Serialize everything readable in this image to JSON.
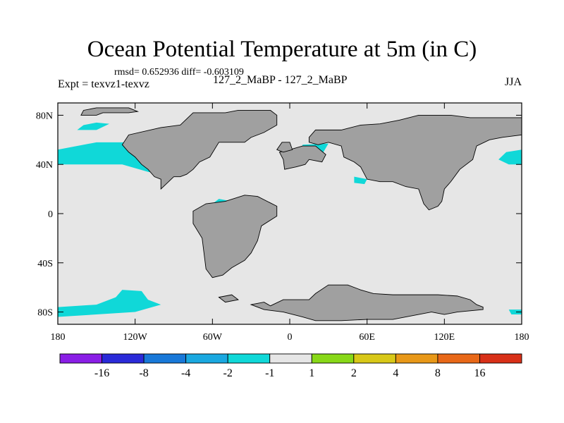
{
  "title": "Ocean Potential Temperature at 5m (in C)",
  "stats": "rmsd= 0.652936 diff= -0.603109",
  "expt": "Expt = texvz1-texvz",
  "subtitle": "127_2_MaBP - 127_2_MaBP",
  "season": "JJA",
  "chart_data": {
    "type": "heatmap",
    "projection": "cylindrical-equidistant",
    "xlim": [
      -180,
      180
    ],
    "ylim": [
      -90,
      90
    ],
    "x_ticks": [
      {
        "value": -180,
        "label": "180"
      },
      {
        "value": -120,
        "label": "120W"
      },
      {
        "value": -60,
        "label": "60W"
      },
      {
        "value": 0,
        "label": "0"
      },
      {
        "value": 60,
        "label": "60E"
      },
      {
        "value": 120,
        "label": "120E"
      },
      {
        "value": 180,
        "label": "180"
      }
    ],
    "y_ticks": [
      {
        "value": 80,
        "label": "80N"
      },
      {
        "value": 40,
        "label": "40N"
      },
      {
        "value": 0,
        "label": "0"
      },
      {
        "value": -40,
        "label": "40S"
      },
      {
        "value": -80,
        "label": "80S"
      }
    ],
    "colorbar": {
      "levels": [
        "-16",
        "-8",
        "-4",
        "-2",
        "-1",
        "1",
        "2",
        "4",
        "8",
        "16"
      ],
      "colors": [
        "#8a1ee6",
        "#2a2ad8",
        "#1878d8",
        "#1aa8e0",
        "#10d8d8",
        "#e6e6e6",
        "#88d818",
        "#d8c818",
        "#e89818",
        "#e86818",
        "#d83018"
      ]
    },
    "land_color": "#a0a0a0",
    "background_color": "#e6e6e6",
    "land_regions": [
      {
        "name": "north-america",
        "polygon": [
          [
            -75,
            82
          ],
          [
            -50,
            82
          ],
          [
            -40,
            84
          ],
          [
            -15,
            84
          ],
          [
            -10,
            80
          ],
          [
            -10,
            72
          ],
          [
            -20,
            66
          ],
          [
            -30,
            62
          ],
          [
            -35,
            58
          ],
          [
            -55,
            58
          ],
          [
            -62,
            46
          ],
          [
            -70,
            42
          ],
          [
            -75,
            36
          ],
          [
            -80,
            32
          ],
          [
            -85,
            30
          ],
          [
            -90,
            30
          ],
          [
            -95,
            25
          ],
          [
            -100,
            20
          ],
          [
            -100,
            28
          ],
          [
            -105,
            30
          ],
          [
            -110,
            36
          ],
          [
            -115,
            40
          ],
          [
            -120,
            46
          ],
          [
            -125,
            50
          ],
          [
            -130,
            56
          ],
          [
            -125,
            64
          ],
          [
            -100,
            70
          ],
          [
            -85,
            72
          ]
        ]
      },
      {
        "name": "arctic-island",
        "polygon": [
          [
            -162,
            80
          ],
          [
            -150,
            80
          ],
          [
            -145,
            82
          ],
          [
            -125,
            82
          ],
          [
            -118,
            83
          ],
          [
            -125,
            86
          ],
          [
            -150,
            86
          ],
          [
            -160,
            84
          ]
        ]
      },
      {
        "name": "south-america",
        "polygon": [
          [
            -50,
            10
          ],
          [
            -35,
            15
          ],
          [
            -25,
            14
          ],
          [
            -10,
            6
          ],
          [
            -10,
            -2
          ],
          [
            -22,
            -10
          ],
          [
            -25,
            -22
          ],
          [
            -30,
            -32
          ],
          [
            -35,
            -38
          ],
          [
            -45,
            -44
          ],
          [
            -52,
            -50
          ],
          [
            -60,
            -52
          ],
          [
            -65,
            -45
          ],
          [
            -68,
            -20
          ],
          [
            -75,
            -8
          ],
          [
            -75,
            2
          ],
          [
            -65,
            8
          ]
        ]
      },
      {
        "name": "eurasia",
        "polygon": [
          [
            15,
            62
          ],
          [
            20,
            68
          ],
          [
            40,
            68
          ],
          [
            55,
            72
          ],
          [
            70,
            73
          ],
          [
            85,
            76
          ],
          [
            100,
            80
          ],
          [
            125,
            80
          ],
          [
            140,
            78
          ],
          [
            160,
            78
          ],
          [
            180,
            78
          ],
          [
            180,
            64
          ],
          [
            165,
            62
          ],
          [
            155,
            60
          ],
          [
            145,
            55
          ],
          [
            142,
            44
          ],
          [
            132,
            36
          ],
          [
            125,
            26
          ],
          [
            120,
            20
          ],
          [
            118,
            10
          ],
          [
            115,
            6
          ],
          [
            108,
            3
          ],
          [
            104,
            8
          ],
          [
            100,
            20
          ],
          [
            90,
            22
          ],
          [
            80,
            26
          ],
          [
            70,
            26
          ],
          [
            60,
            28
          ],
          [
            55,
            38
          ],
          [
            50,
            42
          ],
          [
            42,
            46
          ],
          [
            40,
            55
          ],
          [
            30,
            58
          ],
          [
            22,
            56
          ],
          [
            15,
            58
          ]
        ]
      },
      {
        "name": "europe",
        "polygon": [
          [
            -8,
            50
          ],
          [
            -5,
            44
          ],
          [
            -4,
            36
          ],
          [
            5,
            38
          ],
          [
            12,
            40
          ],
          [
            15,
            44
          ],
          [
            25,
            42
          ],
          [
            28,
            48
          ],
          [
            20,
            55
          ],
          [
            10,
            55
          ],
          [
            0,
            52
          ]
        ]
      },
      {
        "name": "britain",
        "polygon": [
          [
            -10,
            52
          ],
          [
            -5,
            50
          ],
          [
            2,
            52
          ],
          [
            0,
            58
          ],
          [
            -6,
            58
          ]
        ]
      },
      {
        "name": "antarctica",
        "polygon": [
          [
            -30,
            -74
          ],
          [
            -20,
            -72
          ],
          [
            -15,
            -75
          ],
          [
            -5,
            -70
          ],
          [
            15,
            -70
          ],
          [
            20,
            -65
          ],
          [
            30,
            -58
          ],
          [
            45,
            -58
          ],
          [
            55,
            -62
          ],
          [
            65,
            -65
          ],
          [
            80,
            -66
          ],
          [
            100,
            -66
          ],
          [
            115,
            -66
          ],
          [
            130,
            -67
          ],
          [
            140,
            -70
          ],
          [
            145,
            -74
          ],
          [
            150,
            -76
          ],
          [
            150,
            -78
          ],
          [
            130,
            -80
          ],
          [
            120,
            -82
          ],
          [
            110,
            -80
          ],
          [
            100,
            -82
          ],
          [
            90,
            -84
          ],
          [
            80,
            -86
          ],
          [
            60,
            -86
          ],
          [
            40,
            -87
          ],
          [
            20,
            -87
          ],
          [
            10,
            -84
          ],
          [
            -5,
            -80
          ],
          [
            -20,
            -78
          ]
        ]
      },
      {
        "name": "west-antarctic-islands",
        "polygon": [
          [
            -55,
            -68
          ],
          [
            -45,
            -66
          ],
          [
            -40,
            -70
          ],
          [
            -50,
            -72
          ]
        ]
      }
    ],
    "negative_anomaly_regions": [
      {
        "level_bin": "-2 to -1",
        "polygon": [
          [
            -180,
            52
          ],
          [
            -150,
            58
          ],
          [
            -130,
            58
          ],
          [
            -100,
            58
          ],
          [
            -95,
            48
          ],
          [
            -90,
            42
          ],
          [
            -85,
            38
          ],
          [
            -90,
            30
          ],
          [
            -110,
            34
          ],
          [
            -130,
            40
          ],
          [
            -160,
            40
          ],
          [
            -180,
            40
          ]
        ]
      },
      {
        "level_bin": "-2 to -1",
        "polygon": [
          [
            -160,
            72
          ],
          [
            -150,
            74
          ],
          [
            -140,
            73
          ],
          [
            -150,
            68
          ],
          [
            -165,
            68
          ]
        ]
      },
      {
        "level_bin": "-2 to -1",
        "polygon": [
          [
            -130,
            -62
          ],
          [
            -115,
            -63
          ],
          [
            -110,
            -70
          ],
          [
            -100,
            -74
          ],
          [
            -120,
            -80
          ],
          [
            -150,
            -82
          ],
          [
            -180,
            -84
          ],
          [
            -180,
            -76
          ],
          [
            -150,
            -74
          ],
          [
            -135,
            -68
          ]
        ]
      },
      {
        "level_bin": "-2 to -1",
        "polygon": [
          [
            -55,
            12
          ],
          [
            -45,
            10
          ],
          [
            -50,
            2
          ],
          [
            -60,
            2
          ],
          [
            -65,
            4
          ]
        ]
      },
      {
        "level_bin": "-2 to -1",
        "polygon": [
          [
            10,
            56
          ],
          [
            30,
            57
          ],
          [
            25,
            48
          ],
          [
            15,
            45
          ],
          [
            8,
            50
          ]
        ]
      },
      {
        "level_bin": "-2 to -1",
        "polygon": [
          [
            168,
            50
          ],
          [
            180,
            52
          ],
          [
            180,
            40
          ],
          [
            170,
            40
          ],
          [
            162,
            44
          ]
        ]
      },
      {
        "level_bin": "-2 to -1",
        "polygon": [
          [
            170,
            -78
          ],
          [
            180,
            -78
          ],
          [
            180,
            -82
          ],
          [
            172,
            -82
          ]
        ]
      },
      {
        "level_bin": "-2 to -1",
        "polygon": [
          [
            50,
            30
          ],
          [
            60,
            28
          ],
          [
            58,
            24
          ],
          [
            50,
            25
          ]
        ]
      }
    ]
  }
}
